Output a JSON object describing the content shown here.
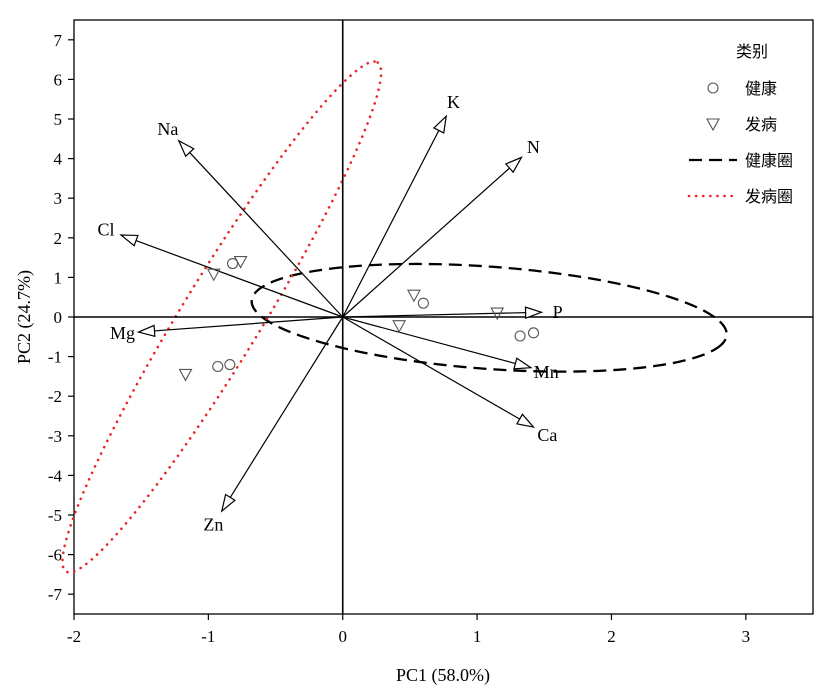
{
  "chart_data": {
    "type": "scatter",
    "title": "",
    "xlabel": "PC1 (58.0%)",
    "ylabel": "PC2 (24.7%)",
    "xlim": [
      -2,
      3.5
    ],
    "ylim": [
      -7.5,
      7.5
    ],
    "xticks": [
      -2,
      -1,
      0,
      1,
      2,
      3
    ],
    "yticks": [
      7,
      6,
      5,
      4,
      3,
      2,
      1,
      0,
      -1,
      -2,
      -3,
      -4,
      -5,
      -6,
      -7
    ],
    "reference_lines": {
      "x": 0,
      "y": 0
    },
    "grid": false,
    "legend_placement": "top-right",
    "legend": {
      "title": "类别",
      "entries": [
        {
          "label": "健康",
          "marker": "circle"
        },
        {
          "label": "发病",
          "marker": "triangle-down"
        },
        {
          "label": "健康圈",
          "line": "dashed",
          "color": "#000000"
        },
        {
          "label": "发病圈",
          "line": "dotted",
          "color": "#e8252a"
        }
      ]
    },
    "series": [
      {
        "name": "健康",
        "marker": "circle",
        "points": [
          [
            -0.82,
            1.35
          ],
          [
            0.6,
            0.35
          ],
          [
            1.32,
            -0.48
          ],
          [
            1.42,
            -0.4
          ],
          [
            -0.93,
            -1.25
          ],
          [
            -0.84,
            -1.2
          ]
        ]
      },
      {
        "name": "发病",
        "marker": "triangle-down",
        "points": [
          [
            -0.76,
            1.4
          ],
          [
            -0.96,
            1.08
          ],
          [
            0.53,
            0.55
          ],
          [
            0.42,
            -0.22
          ],
          [
            1.15,
            0.1
          ],
          [
            -1.17,
            -1.45
          ]
        ]
      }
    ],
    "vectors": [
      {
        "label": "Na",
        "x": -1.22,
        "y": 4.45
      },
      {
        "label": "K",
        "x": 0.77,
        "y": 5.07
      },
      {
        "label": "N",
        "x": 1.33,
        "y": 4.03
      },
      {
        "label": "Cl",
        "x": -1.65,
        "y": 2.07
      },
      {
        "label": "P",
        "x": 1.48,
        "y": 0.12
      },
      {
        "label": "Mg",
        "x": -1.52,
        "y": -0.38
      },
      {
        "label": "Mn",
        "x": 1.4,
        "y": -1.28
      },
      {
        "label": "Ca",
        "x": 1.42,
        "y": -2.78
      },
      {
        "label": "Zn",
        "x": -0.9,
        "y": -4.9
      }
    ],
    "ellipses": [
      {
        "name": "健康圈",
        "center": [
          1.09,
          -0.02
        ],
        "semi_axes": [
          1.86,
          1.23
        ],
        "angle_deg": -24.5,
        "color": "#000000",
        "style": "dashed"
      },
      {
        "name": "发病圈",
        "center": [
          -0.9,
          0.0
        ],
        "semi_axes": [
          6.55,
          0.34
        ],
        "angle_deg": 80,
        "color": "#e8252a",
        "style": "dotted"
      }
    ],
    "colors": {
      "axis": "#000000",
      "healthy_ellipse": "#000000",
      "diseased_ellipse": "#e8252a"
    }
  }
}
